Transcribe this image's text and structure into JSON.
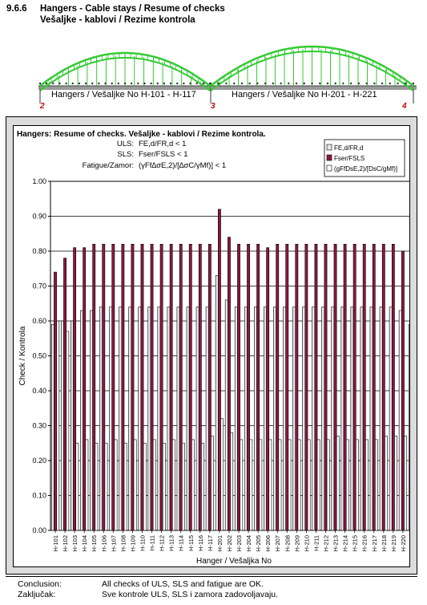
{
  "section": {
    "number": "9.6.6",
    "title_line1": "Hangers - Cable stays / Resume of checks",
    "title_line2": "Vešaljke - kablovi / Rezime kontrola"
  },
  "bridge": {
    "label_left": "Hangers / Vešaljke No H-101 - H-117",
    "label_right": "Hangers / Vešaljke No H-201 - H-221",
    "pier_labels": [
      "2",
      "3",
      "4"
    ],
    "arch_color": "#33cc33"
  },
  "chart_data": {
    "type": "bar",
    "title": "Hangers: Resume of checks. Vešaljke - kablovi / Rezime kontrola.",
    "formulas": [
      {
        "label": "ULS:",
        "expr": "FE,d/FR,d < 1"
      },
      {
        "label": "SLS:",
        "expr": "Fser/FSLS < 1"
      },
      {
        "label": "Fatigue/Zamor:",
        "expr": "(γFf∆σE,2)/[∆σC/γMf)] < 1"
      }
    ],
    "xlabel": "Hanger / Vešaljka  No",
    "ylabel": "Check / Kontrola",
    "ylim": [
      0,
      1
    ],
    "yticks": [
      "0.00",
      "0.10",
      "0.20",
      "0.30",
      "0.40",
      "0.50",
      "0.60",
      "0.70",
      "0.80",
      "0.90",
      "1.00"
    ],
    "grid": true,
    "legend_position": "top-right",
    "categories": [
      "H-101",
      "H-102",
      "H-103",
      "H-104",
      "H-105",
      "H-106",
      "H-107",
      "H-108",
      "H-109",
      "H-110",
      "H-111",
      "H-112",
      "H-113",
      "H-114",
      "H-115",
      "H-116",
      "H-117",
      "H-201",
      "H-202",
      "H-203",
      "H-204",
      "H-205",
      "H-206",
      "H-207",
      "H-208",
      "H-209",
      "H-210",
      "H-211",
      "H-212",
      "H-213",
      "H-214",
      "H-215",
      "H-216",
      "H-217",
      "H-218",
      "H-219",
      "H-220",
      "H-221"
    ],
    "series": [
      {
        "name": "FE,d/FR,d",
        "color": "#e8e8f0",
        "values": [
          0.59,
          0.6,
          0.6,
          0.63,
          0.63,
          0.64,
          0.64,
          0.64,
          0.64,
          0.64,
          0.64,
          0.64,
          0.64,
          0.64,
          0.64,
          0.64,
          0.64,
          0.73,
          0.66,
          0.64,
          0.64,
          0.64,
          0.64,
          0.64,
          0.64,
          0.64,
          0.64,
          0.64,
          0.64,
          0.64,
          0.64,
          0.64,
          0.64,
          0.64,
          0.64,
          0.64,
          0.63,
          0.59
        ]
      },
      {
        "name": "Fser/FSLS",
        "color": "#8b1a3c",
        "values": [
          0.74,
          0.78,
          0.81,
          0.81,
          0.82,
          0.82,
          0.82,
          0.82,
          0.82,
          0.82,
          0.82,
          0.82,
          0.82,
          0.82,
          0.82,
          0.82,
          0.82,
          0.92,
          0.84,
          0.82,
          0.82,
          0.82,
          0.81,
          0.82,
          0.82,
          0.82,
          0.82,
          0.82,
          0.82,
          0.82,
          0.82,
          0.82,
          0.82,
          0.82,
          0.82,
          0.82,
          0.8,
          0.73
        ]
      },
      {
        "name": "(gFfDsE,2)/[DsC/gMf)]",
        "color": "#ffffff",
        "values": [
          0.6,
          0.57,
          0.25,
          0.26,
          0.25,
          0.25,
          0.26,
          0.25,
          0.26,
          0.25,
          0.26,
          0.25,
          0.26,
          0.25,
          0.26,
          0.25,
          0.27,
          0.32,
          0.28,
          0.26,
          0.26,
          0.26,
          0.26,
          0.26,
          0.26,
          0.26,
          0.26,
          0.26,
          0.26,
          0.27,
          0.26,
          0.26,
          0.26,
          0.26,
          0.27,
          0.27,
          0.27,
          0.34
        ]
      }
    ]
  },
  "conclusion": {
    "label_en": "Conclusion:",
    "text_en": "All checks of ULS, SLS and fatigue are OK.",
    "label_sr": "Zaključak:",
    "text_sr": "Sve kontrole ULS, SLS i zamora zadovoljavaju."
  }
}
